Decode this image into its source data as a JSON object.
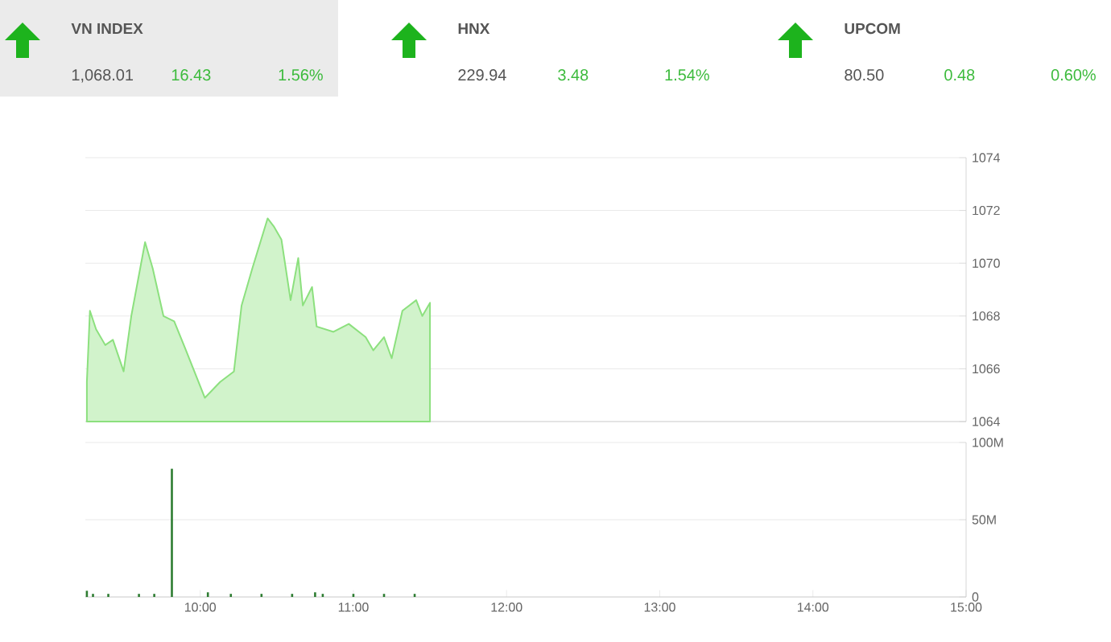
{
  "chart_data": [
    {
      "type": "other",
      "title": "VN INDEX",
      "annotations": [
        "1,068.01",
        "16.43",
        "1.56%"
      ]
    },
    {
      "type": "other",
      "title": "HNX",
      "annotations": [
        "229.94",
        "3.48",
        "1.54%"
      ]
    },
    {
      "type": "other",
      "title": "UPCOM",
      "annotations": [
        "80.50",
        "0.48",
        "0.60%"
      ]
    },
    {
      "type": "area",
      "color": "#8ce07e",
      "x": [
        9.26,
        9.28,
        9.32,
        9.38,
        9.43,
        9.5,
        9.55,
        9.64,
        9.69,
        9.76,
        9.83,
        9.9,
        10.03,
        10.13,
        10.22,
        10.27,
        10.34,
        10.44,
        10.48,
        10.53,
        10.59,
        10.64,
        10.67,
        10.73,
        10.76,
        10.87,
        10.97,
        11.08,
        11.13,
        11.2,
        11.25,
        11.32,
        11.41,
        11.45,
        11.5
      ],
      "values": [
        1065.5,
        1068.2,
        1067.5,
        1066.9,
        1067.1,
        1065.9,
        1068.0,
        1070.8,
        1069.8,
        1068.0,
        1067.8,
        1066.8,
        1064.9,
        1065.5,
        1065.9,
        1068.4,
        1069.8,
        1071.7,
        1071.4,
        1070.9,
        1068.6,
        1070.2,
        1068.4,
        1069.1,
        1067.6,
        1067.4,
        1067.7,
        1067.2,
        1066.7,
        1067.2,
        1066.4,
        1068.2,
        1068.6,
        1068.0,
        1068.5
      ],
      "xlim": [
        9.25,
        15
      ],
      "ylim": [
        1064,
        1074
      ],
      "yticks": [
        1064,
        1066,
        1068,
        1070,
        1072,
        1074
      ],
      "grid": "y",
      "tick_labels": "y"
    },
    {
      "type": "bar",
      "color": "#2e7d32",
      "x": [
        9.26,
        9.3,
        9.4,
        9.6,
        9.7,
        9.815,
        10.05,
        10.2,
        10.4,
        10.6,
        10.75,
        10.8,
        11.0,
        11.2,
        11.4
      ],
      "values": [
        4,
        2,
        2,
        2,
        2,
        83,
        3,
        2,
        2,
        2,
        3,
        2,
        2,
        2,
        2
      ],
      "xlim": [
        9.25,
        15
      ],
      "xticks": [
        {
          "value": 10,
          "label": "10:00"
        },
        {
          "value": 11,
          "label": "11:00"
        },
        {
          "value": 12,
          "label": "12:00"
        },
        {
          "value": 13,
          "label": "13:00"
        },
        {
          "value": 14,
          "label": "14:00"
        },
        {
          "value": 15,
          "label": "15:00"
        }
      ],
      "ylim": [
        0,
        100
      ],
      "yticks": [
        0,
        {
          "value": 50,
          "label": "50M"
        },
        {
          "value": 100,
          "label": "100M"
        }
      ],
      "grid": "y"
    }
  ]
}
